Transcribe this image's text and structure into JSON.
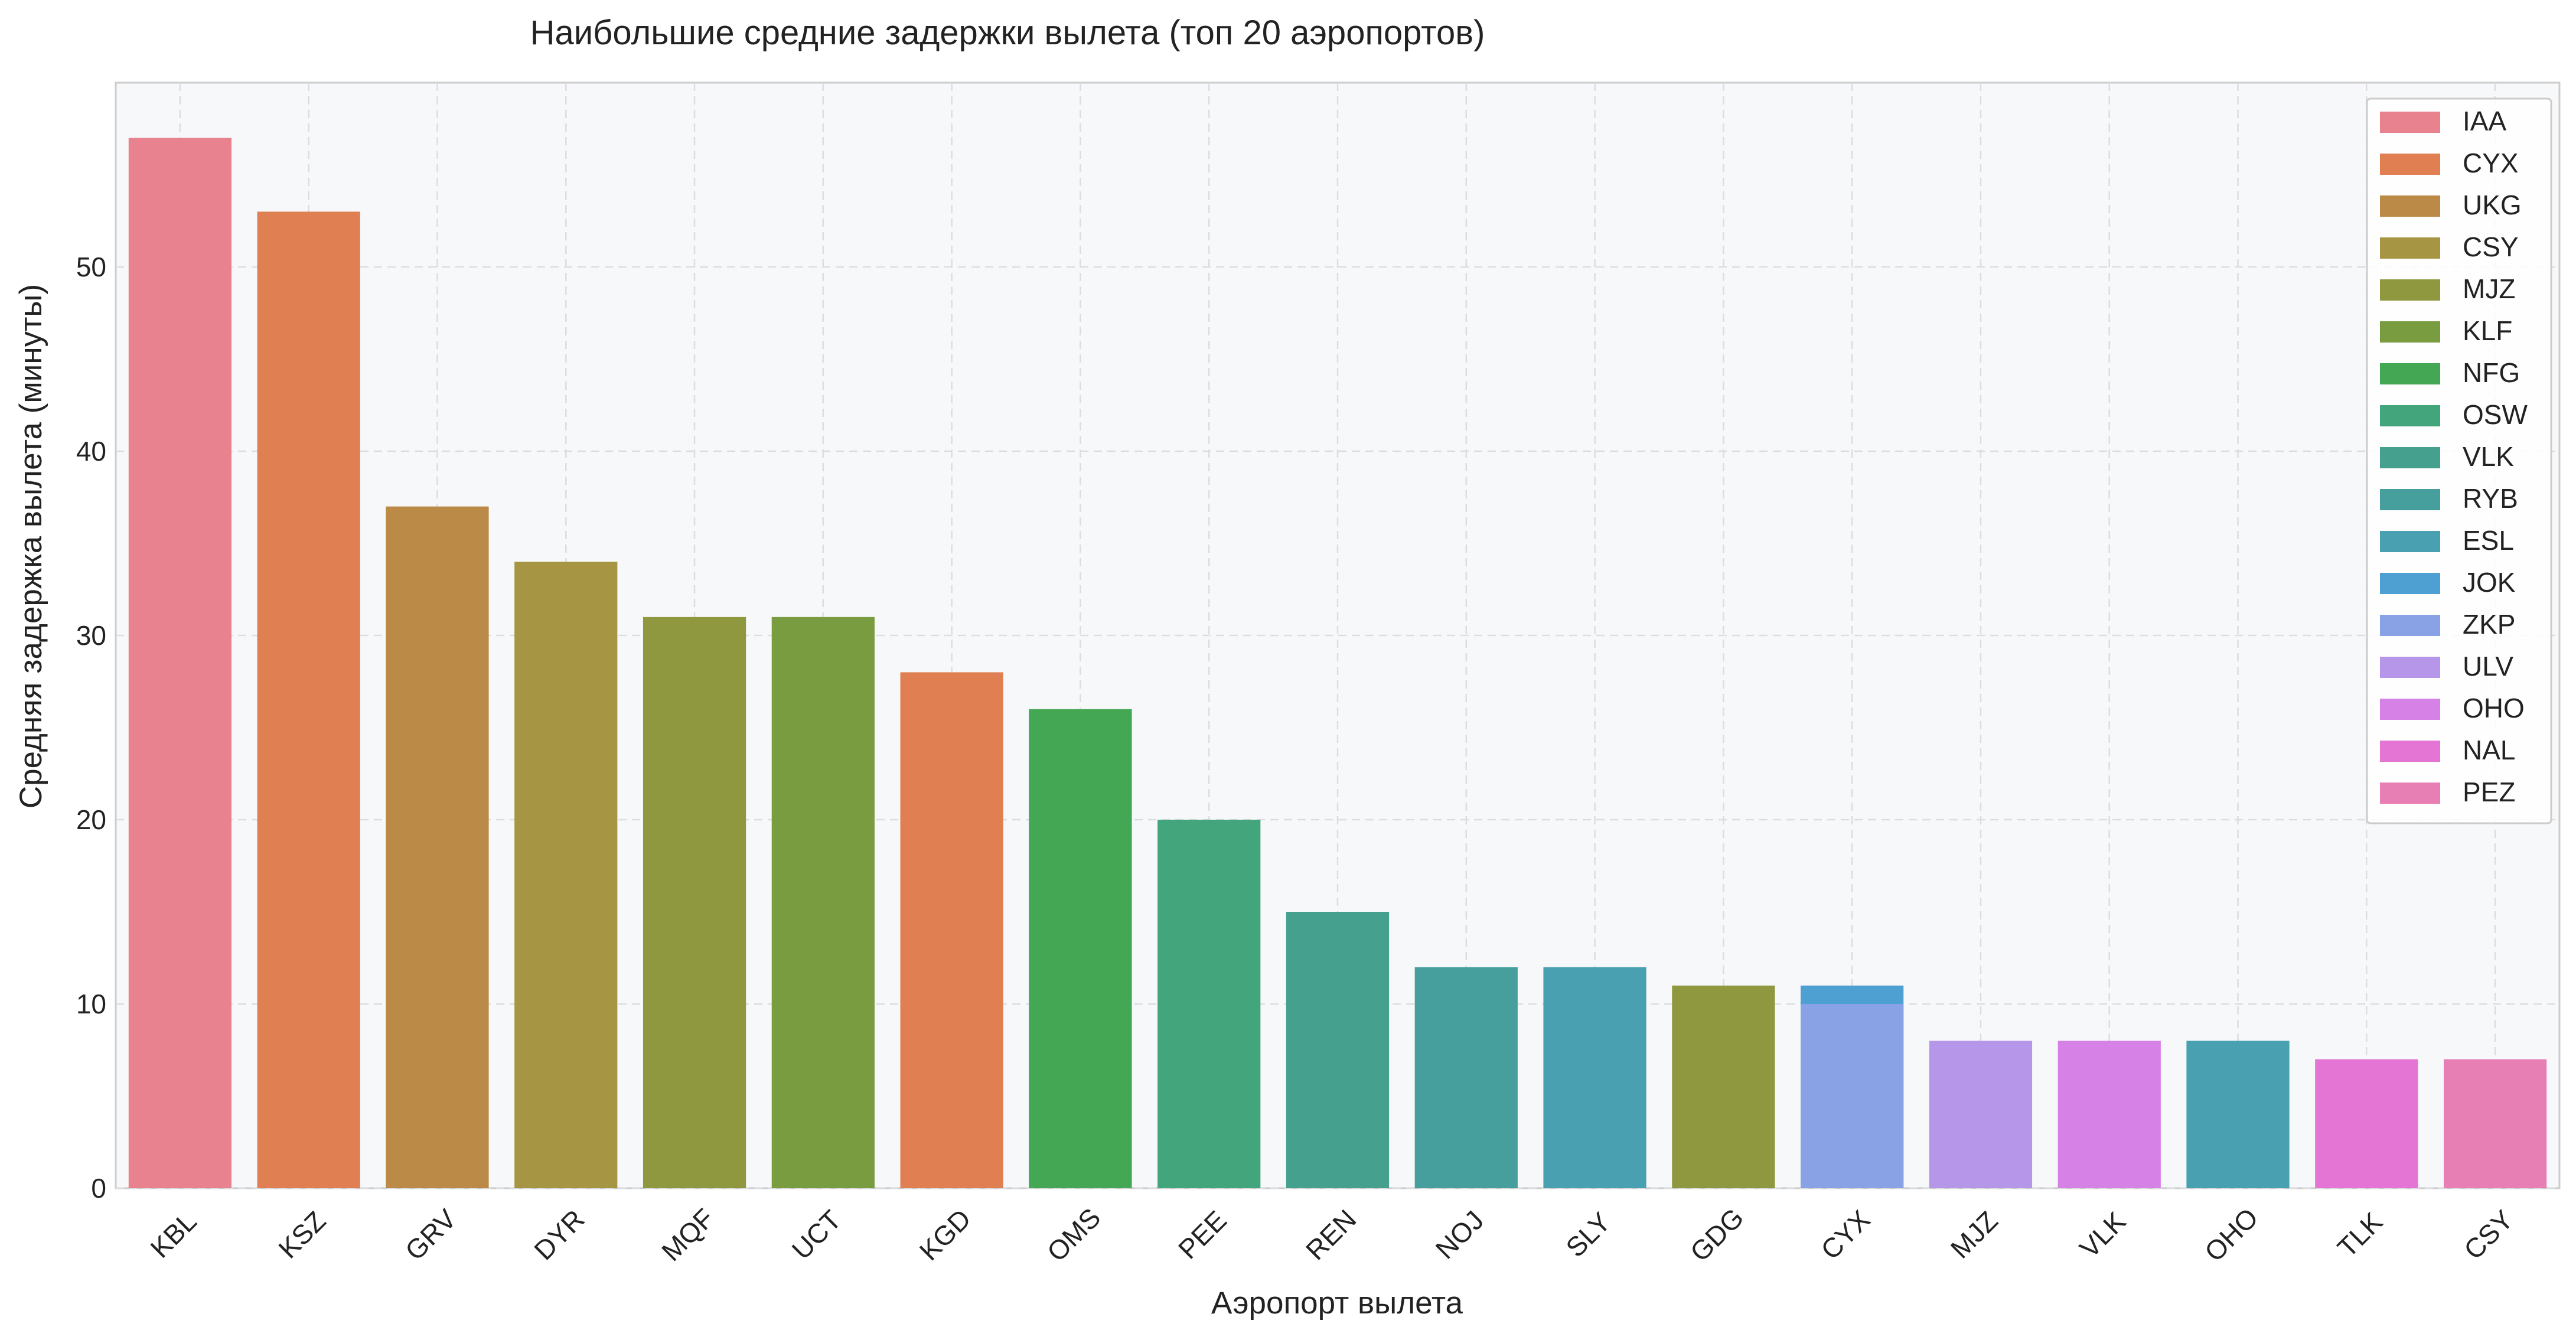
{
  "chart_data": {
    "type": "bar",
    "title": "Наибольшие средние задержки вылета (топ 20 аэропортов)",
    "xlabel": "Аэропорт вылета",
    "ylabel": "Средняя задержка вылета (минуты)",
    "ylim": [
      0,
      60
    ],
    "yticks": [
      0,
      10,
      20,
      30,
      40,
      50
    ],
    "grid": true,
    "legend_position": "top-right",
    "categories": [
      "KBL",
      "KSZ",
      "GRV",
      "DYR",
      "MQF",
      "UCT",
      "KGD",
      "OMS",
      "PEE",
      "REN",
      "NOJ",
      "SLY",
      "GDG",
      "CYX",
      "MJZ",
      "VLK",
      "OHO",
      "TLK",
      "CSY"
    ],
    "series": [
      {
        "name": "IAA",
        "color": "#e8828f",
        "values": [
          57,
          null,
          null,
          null,
          null,
          null,
          null,
          null,
          null,
          null,
          null,
          null,
          null,
          null,
          null,
          null,
          null,
          null,
          null
        ]
      },
      {
        "name": "CYX",
        "color": "#e07f52",
        "values": [
          null,
          53,
          null,
          null,
          null,
          null,
          28,
          null,
          null,
          null,
          null,
          null,
          null,
          null,
          null,
          null,
          null,
          null,
          null
        ]
      },
      {
        "name": "UKG",
        "color": "#bb8a46",
        "values": [
          null,
          null,
          37,
          null,
          null,
          null,
          null,
          null,
          null,
          null,
          null,
          null,
          null,
          null,
          null,
          null,
          null,
          null,
          null
        ]
      },
      {
        "name": "CSY",
        "color": "#a69542",
        "values": [
          null,
          null,
          null,
          34,
          null,
          null,
          null,
          null,
          null,
          null,
          null,
          null,
          null,
          null,
          null,
          null,
          null,
          null,
          null
        ]
      },
      {
        "name": "MJZ",
        "color": "#8f983f",
        "values": [
          null,
          null,
          null,
          null,
          31,
          null,
          null,
          null,
          null,
          null,
          null,
          null,
          11,
          null,
          null,
          null,
          null,
          null,
          null
        ]
      },
      {
        "name": "KLF",
        "color": "#7a9c40",
        "values": [
          null,
          null,
          null,
          null,
          null,
          31,
          null,
          null,
          null,
          null,
          null,
          null,
          null,
          null,
          null,
          null,
          null,
          null,
          null
        ]
      },
      {
        "name": "NFG",
        "color": "#43a753",
        "values": [
          null,
          null,
          null,
          null,
          null,
          null,
          null,
          26,
          null,
          null,
          null,
          null,
          null,
          null,
          null,
          null,
          null,
          null,
          null
        ]
      },
      {
        "name": "OSW",
        "color": "#43a57b",
        "values": [
          null,
          null,
          null,
          null,
          null,
          null,
          null,
          null,
          20,
          null,
          null,
          null,
          null,
          null,
          null,
          null,
          null,
          null,
          null
        ]
      },
      {
        "name": "VLK",
        "color": "#45a08e",
        "values": [
          null,
          null,
          null,
          null,
          null,
          null,
          null,
          null,
          null,
          15,
          null,
          null,
          null,
          null,
          null,
          null,
          null,
          null,
          null
        ]
      },
      {
        "name": "RYB",
        "color": "#469f9c",
        "values": [
          null,
          null,
          null,
          null,
          null,
          null,
          null,
          null,
          null,
          null,
          12,
          null,
          null,
          null,
          null,
          null,
          null,
          null,
          null
        ]
      },
      {
        "name": "ESL",
        "color": "#49a0b1",
        "values": [
          null,
          null,
          null,
          null,
          null,
          null,
          null,
          null,
          null,
          null,
          null,
          12,
          null,
          null,
          null,
          null,
          8,
          null,
          null
        ]
      },
      {
        "name": "JOK",
        "color": "#4da0d1",
        "values": [
          null,
          null,
          null,
          null,
          null,
          null,
          null,
          null,
          null,
          null,
          null,
          null,
          null,
          11,
          null,
          null,
          null,
          null,
          null
        ]
      },
      {
        "name": "ZKP",
        "color": "#89a2e6",
        "values": [
          null,
          null,
          null,
          null,
          null,
          null,
          null,
          null,
          null,
          null,
          null,
          null,
          null,
          10,
          null,
          null,
          null,
          null,
          null
        ]
      },
      {
        "name": "ULV",
        "color": "#b596e8",
        "values": [
          null,
          null,
          null,
          null,
          null,
          null,
          null,
          null,
          null,
          null,
          null,
          null,
          null,
          null,
          8,
          null,
          null,
          null,
          null
        ]
      },
      {
        "name": "OHO",
        "color": "#d681e6",
        "values": [
          null,
          null,
          null,
          null,
          null,
          null,
          null,
          null,
          null,
          null,
          null,
          null,
          null,
          null,
          null,
          8,
          null,
          null,
          null
        ]
      },
      {
        "name": "NAL",
        "color": "#e475d4",
        "values": [
          null,
          null,
          null,
          null,
          null,
          null,
          null,
          null,
          null,
          null,
          null,
          null,
          null,
          null,
          null,
          null,
          null,
          7,
          null
        ]
      },
      {
        "name": "PEZ",
        "color": "#e77fb4",
        "values": [
          null,
          null,
          null,
          null,
          null,
          null,
          null,
          null,
          null,
          null,
          null,
          null,
          null,
          null,
          null,
          null,
          null,
          null,
          7
        ]
      }
    ]
  }
}
